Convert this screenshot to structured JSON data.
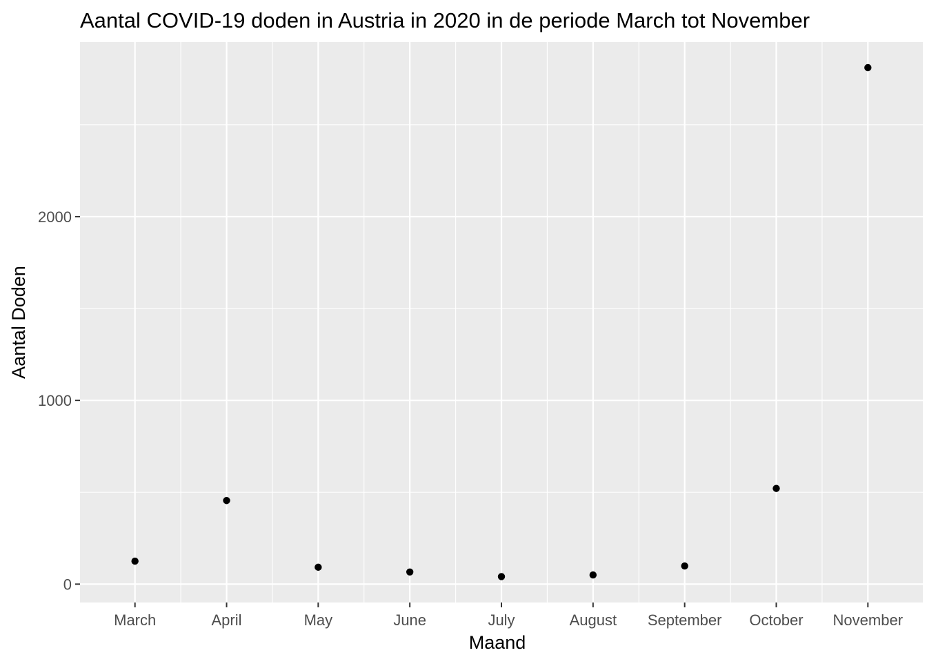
{
  "chart_data": {
    "type": "scatter",
    "title": "Aantal COVID-19 doden in Austria in 2020 in de periode March tot November",
    "xlabel": "Maand",
    "ylabel": "Aantal Doden",
    "categories": [
      "March",
      "April",
      "May",
      "June",
      "July",
      "August",
      "September",
      "October",
      "November"
    ],
    "values": [
      125,
      455,
      92,
      66,
      41,
      50,
      99,
      521,
      2811
    ],
    "ylim": [
      -100,
      2950
    ],
    "yticks": [
      0,
      1000,
      2000
    ],
    "yticklabels": [
      "0",
      "1000",
      "2000"
    ],
    "grid": true,
    "legend": "none",
    "colors": {
      "panel_background": "#ebebeb",
      "grid_major": "#ffffff",
      "point": "#000000",
      "tick_text": "#4d4d4d",
      "title_text": "#000000"
    }
  }
}
